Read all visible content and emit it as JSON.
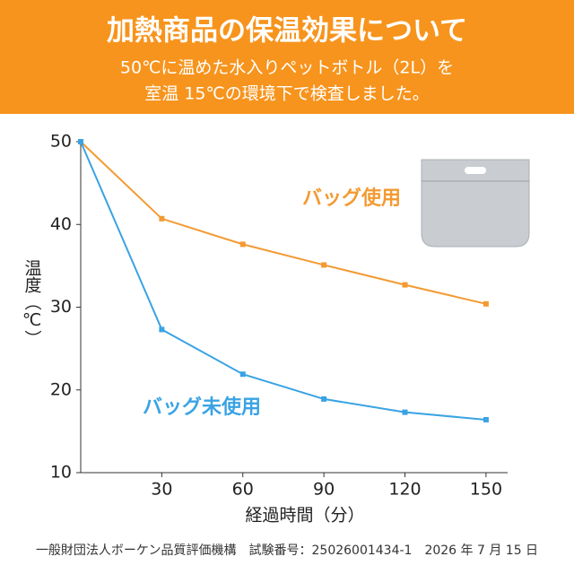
{
  "chart_data": {
    "type": "line",
    "title": "加熱商品の保温効果について",
    "subtitle": [
      "50℃に温めた水入りペットボトル（2L）を",
      "室温 15℃の環境下で検査しました。"
    ],
    "x_label": "経過時間（分）",
    "y_label": "温度（℃）",
    "x": [
      0,
      30,
      60,
      90,
      120,
      150
    ],
    "series": [
      {
        "name": "バッグ使用",
        "color": "#f39a32",
        "values": [
          50,
          40.7,
          37.6,
          35.1,
          32.7,
          30.4
        ]
      },
      {
        "name": "バッグ未使用",
        "color": "#3aa3e3",
        "values": [
          50,
          27.3,
          21.9,
          18.9,
          17.3,
          16.4
        ]
      }
    ],
    "xlim": [
      0,
      158
    ],
    "xticks": [
      30,
      60,
      90,
      120,
      150
    ],
    "ylim": [
      10,
      50
    ],
    "yticks": [
      10,
      20,
      30,
      40,
      50
    ],
    "footnote": "一般財団法人ボーケン品質評価機構　試験番号：25026001434-1　2026 年 7 月 15 日"
  }
}
